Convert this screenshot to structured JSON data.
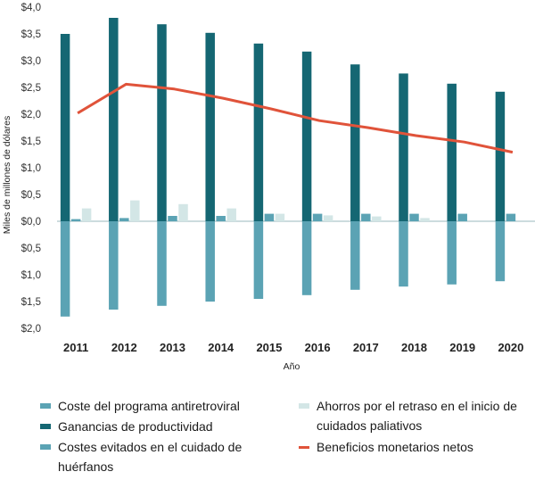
{
  "chart_data": {
    "type": "bar",
    "ylabel": "Miles de millones de dólares",
    "xlabel": "Año",
    "categories": [
      "2011",
      "2012",
      "2013",
      "2014",
      "2015",
      "2016",
      "2017",
      "2018",
      "2019",
      "2020"
    ],
    "ylim": [
      -2.0,
      4.0
    ],
    "yticks": [
      4.0,
      3.5,
      3.0,
      2.5,
      2.0,
      1.5,
      1.0,
      0.5,
      0.0,
      -0.5,
      -1.0,
      -1.5,
      -2.0
    ],
    "ytick_labels": [
      "$4,0",
      "$3,5",
      "$3,0",
      "$2,5",
      "$2,0",
      "$1,5",
      "$1,0",
      "$0,5",
      "$0,0",
      "$0,5",
      "$1,0",
      "$1,5",
      "$2,0"
    ],
    "series": [
      {
        "name": "Coste del programa antiretroviral",
        "kind": "bar",
        "color": "#5ba3b4",
        "values": [
          -1.78,
          -1.65,
          -1.58,
          -1.5,
          -1.45,
          -1.38,
          -1.28,
          -1.22,
          -1.18,
          -1.12
        ]
      },
      {
        "name": "Ganancias de productividad",
        "kind": "bar",
        "color": "#156773",
        "values": [
          3.5,
          3.8,
          3.68,
          3.52,
          3.32,
          3.17,
          2.93,
          2.76,
          2.57,
          2.42
        ]
      },
      {
        "name": "Costes evitados en el cuidado de huérfanos",
        "kind": "bar",
        "color": "#5ba3b4",
        "values": [
          0.04,
          0.06,
          0.1,
          0.1,
          0.14,
          0.14,
          0.14,
          0.14,
          0.14,
          0.14
        ]
      },
      {
        "name": "Ahorros por el retraso en el inicio de cuidados paliativos",
        "kind": "bar",
        "color": "#d3e6e6",
        "values": [
          0.24,
          0.39,
          0.32,
          0.24,
          0.14,
          0.11,
          0.09,
          0.06,
          0.0,
          0.0
        ]
      },
      {
        "name": "Beneficios monetarios netos",
        "kind": "line",
        "color": "#e0533a",
        "values": [
          2.02,
          2.56,
          2.47,
          2.3,
          2.1,
          1.88,
          1.75,
          1.6,
          1.48,
          1.29
        ]
      }
    ]
  },
  "legend": {
    "items": [
      {
        "label": "Coste del programa antiretroviral",
        "color": "#5ba3b4",
        "kind": "bar"
      },
      {
        "label": "Ganancias de productividad",
        "color": "#156773",
        "kind": "bar"
      },
      {
        "label": "Costes evitados en el cuidado de huérfanos",
        "color": "#5ba3b4",
        "kind": "bar"
      },
      {
        "label": "Ahorros por el retraso en el inicio de cuidados paliativos",
        "color": "#d3e6e6",
        "kind": "bar"
      },
      {
        "label": "Beneficios monetarios netos",
        "color": "#e0533a",
        "kind": "line"
      }
    ]
  }
}
